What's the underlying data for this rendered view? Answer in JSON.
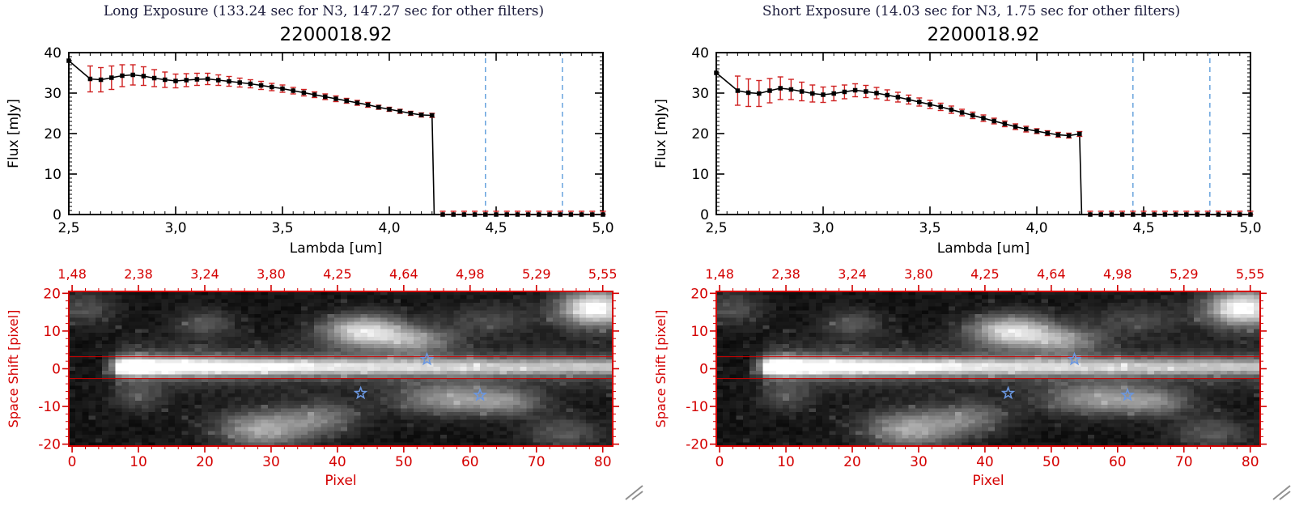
{
  "window": {
    "background": "#ffffff"
  },
  "panels": [
    {
      "id": "long",
      "title": "Long Exposure (133.24 sec for N3, 147.27 sec for other filters)",
      "subtitle": "2200018.92"
    },
    {
      "id": "short",
      "title": "Short Exposure (14.03 sec for N3, 1.75 sec for other filters)",
      "subtitle": "2200018.92"
    }
  ],
  "colors": {
    "title_text": "#1c1c3c",
    "axis_black": "#000000",
    "errorbar_red": "#cf2020",
    "image_axis_red": "#d40000",
    "dashed_blue": "#5d9ddb",
    "star_blue": "#6b97e0",
    "grip_gray": "#909090"
  },
  "chart_data": [
    {
      "type": "line",
      "panel": "long",
      "title": "2200018.92",
      "xlabel": "Lambda [um]",
      "ylabel": "Flux [mJy]",
      "xlim": [
        2.5,
        5.0
      ],
      "ylim": [
        0,
        40
      ],
      "grid": false,
      "x_ticks": {
        "values": [
          2.5,
          3.0,
          3.5,
          4.0,
          4.5,
          5.0
        ],
        "labels": [
          "2,5",
          "3,0",
          "3,5",
          "4,0",
          "4,5",
          "5,0"
        ]
      },
      "y_ticks": {
        "values": [
          0,
          10,
          20,
          30,
          40
        ],
        "labels": [
          "0",
          "10",
          "20",
          "30",
          "40"
        ]
      },
      "dashed_lines_x": [
        4.45,
        4.81
      ],
      "drop_x": 4.21,
      "zero_tail": {
        "start": 4.25,
        "end": 5.0,
        "step": 0.05,
        "flux": 0,
        "err": 0.8
      },
      "series": {
        "x": [
          2.5,
          2.6,
          2.65,
          2.7,
          2.75,
          2.8,
          2.85,
          2.9,
          2.95,
          3.0,
          3.05,
          3.1,
          3.15,
          3.2,
          3.25,
          3.3,
          3.35,
          3.4,
          3.45,
          3.5,
          3.55,
          3.6,
          3.65,
          3.7,
          3.75,
          3.8,
          3.85,
          3.9,
          3.95,
          4.0,
          4.05,
          4.1,
          4.15,
          4.2
        ],
        "flux": [
          38.0,
          33.5,
          33.3,
          33.8,
          34.3,
          34.5,
          34.2,
          33.7,
          33.3,
          33.0,
          33.2,
          33.4,
          33.5,
          33.2,
          32.9,
          32.6,
          32.3,
          31.9,
          31.5,
          31.1,
          30.6,
          30.1,
          29.6,
          29.1,
          28.6,
          28.1,
          27.6,
          27.1,
          26.5,
          26.0,
          25.5,
          25.0,
          24.6,
          24.5
        ],
        "err": [
          0,
          3.2,
          3.0,
          2.9,
          2.7,
          2.5,
          2.3,
          2.1,
          1.9,
          1.7,
          1.6,
          1.5,
          1.4,
          1.3,
          1.2,
          1.1,
          1.0,
          1.0,
          0.9,
          0.9,
          0.8,
          0.8,
          0.7,
          0.7,
          0.7,
          0.6,
          0.6,
          0.6,
          0.5,
          0.5,
          0.5,
          0.5,
          0.5,
          0.5
        ]
      }
    },
    {
      "type": "line",
      "panel": "short",
      "title": "2200018.92",
      "xlabel": "Lambda [um]",
      "ylabel": "Flux [mJy]",
      "xlim": [
        2.5,
        5.0
      ],
      "ylim": [
        0,
        40
      ],
      "grid": false,
      "x_ticks": {
        "values": [
          2.5,
          3.0,
          3.5,
          4.0,
          4.5,
          5.0
        ],
        "labels": [
          "2,5",
          "3,0",
          "3,5",
          "4,0",
          "4,5",
          "5,0"
        ]
      },
      "y_ticks": {
        "values": [
          0,
          10,
          20,
          30,
          40
        ],
        "labels": [
          "0",
          "10",
          "20",
          "30",
          "40"
        ]
      },
      "dashed_lines_x": [
        4.45,
        4.81
      ],
      "drop_x": 4.21,
      "zero_tail": {
        "start": 4.25,
        "end": 5.0,
        "step": 0.05,
        "flux": 0,
        "err": 0.8
      },
      "series": {
        "x": [
          2.5,
          2.6,
          2.65,
          2.7,
          2.75,
          2.8,
          2.85,
          2.9,
          2.95,
          3.0,
          3.05,
          3.1,
          3.15,
          3.2,
          3.25,
          3.3,
          3.35,
          3.4,
          3.45,
          3.5,
          3.55,
          3.6,
          3.65,
          3.7,
          3.75,
          3.8,
          3.85,
          3.9,
          3.95,
          4.0,
          4.05,
          4.1,
          4.15,
          4.2
        ],
        "flux": [
          35.0,
          30.6,
          30.1,
          29.9,
          30.6,
          31.2,
          30.9,
          30.4,
          29.9,
          29.6,
          29.9,
          30.3,
          30.7,
          30.4,
          30.0,
          29.5,
          29.0,
          28.4,
          27.8,
          27.2,
          26.6,
          25.9,
          25.2,
          24.5,
          23.8,
          23.1,
          22.4,
          21.7,
          21.1,
          20.6,
          20.1,
          19.7,
          19.5,
          19.9
        ],
        "err": [
          0,
          3.6,
          3.4,
          3.2,
          3.0,
          2.8,
          2.5,
          2.3,
          2.1,
          1.9,
          1.8,
          1.7,
          1.6,
          1.5,
          1.4,
          1.3,
          1.2,
          1.1,
          1.0,
          1.0,
          0.9,
          0.9,
          0.8,
          0.8,
          0.8,
          0.7,
          0.7,
          0.7,
          0.7,
          0.6,
          0.6,
          0.6,
          0.6,
          0.6
        ]
      }
    },
    {
      "type": "heatmap",
      "panel": "both",
      "xlabel": "Pixel",
      "ylabel": "Space Shift [pixel]",
      "x_range": [
        0,
        81
      ],
      "y_range": [
        -20,
        20
      ],
      "bottom_ticks": {
        "values": [
          0,
          10,
          20,
          30,
          40,
          50,
          60,
          70,
          80
        ],
        "labels": [
          "0",
          "10",
          "20",
          "30",
          "40",
          "50",
          "60",
          "70",
          "80"
        ]
      },
      "left_ticks": {
        "values": [
          -20,
          -10,
          0,
          10,
          20
        ],
        "labels": [
          "-20",
          "-10",
          "0",
          "10",
          "20"
        ]
      },
      "top_axis": {
        "values": [
          0,
          10,
          20,
          30,
          40,
          50,
          60,
          70,
          80
        ],
        "labels": [
          "1,48",
          "2,38",
          "3,24",
          "3,80",
          "4,25",
          "4,64",
          "4,98",
          "5,29",
          "5,55"
        ]
      },
      "red_lines_y": [
        3.2,
        -2.6
      ],
      "stars": [
        [
          53.5,
          2.5
        ],
        [
          43.5,
          -6.5
        ],
        [
          61.5,
          -7.0
        ]
      ],
      "image_model": {
        "seed": 7,
        "background_level": 0.07,
        "noise_amplitude": 0.09,
        "speckle_prob": 0.05,
        "speckle_amp": 0.14,
        "streak": {
          "y_center": 0.5,
          "sigma": 1.7,
          "halo_sigma": 4.2,
          "halo_frac": 0.28,
          "ramp": [
            [
              4,
              0.0
            ],
            [
              6,
              0.35
            ],
            [
              7,
              0.8
            ],
            [
              8,
              0.97
            ],
            [
              9,
              1.0
            ]
          ],
          "decay_base": 0.52,
          "decay_amp": 0.48,
          "decay_scale": 26
        },
        "blobs": [
          [
            79,
            16,
            4,
            3.5,
            0.95
          ],
          [
            44,
            10,
            4.5,
            3,
            0.8
          ],
          [
            52,
            7.5,
            4,
            2.5,
            0.45
          ],
          [
            63,
            13,
            5,
            3,
            0.22
          ],
          [
            29,
            -16,
            5,
            3.5,
            0.6
          ],
          [
            38,
            -13,
            4,
            3,
            0.35
          ],
          [
            57,
            -8,
            6,
            3,
            0.5
          ],
          [
            66,
            -9,
            4,
            2.5,
            0.33
          ],
          [
            20,
            12,
            3,
            2.5,
            0.3
          ],
          [
            10,
            -8,
            3,
            2.5,
            0.22
          ],
          [
            2,
            16,
            3,
            3,
            0.25
          ],
          [
            74,
            -17,
            4,
            3,
            0.28
          ]
        ]
      }
    }
  ]
}
